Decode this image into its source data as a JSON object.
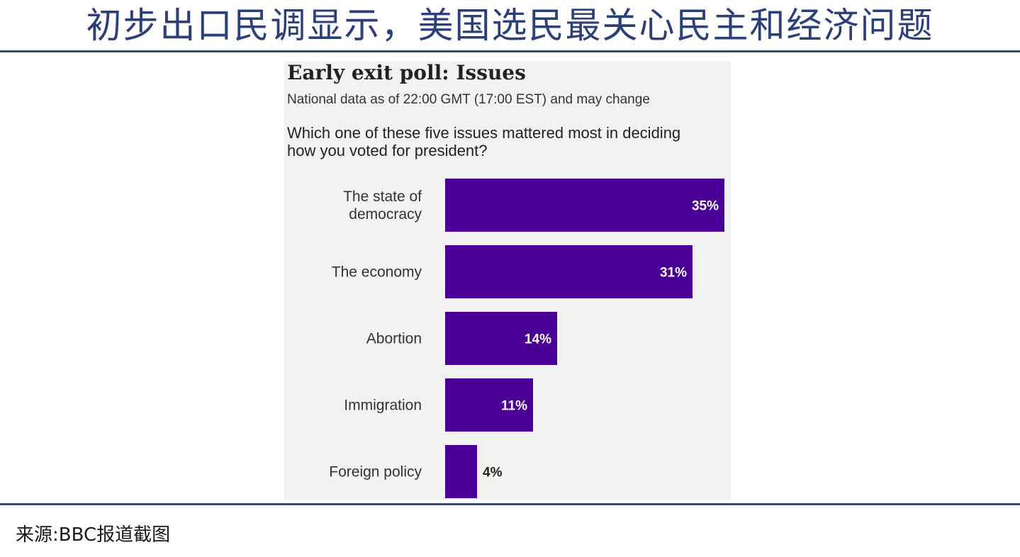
{
  "slide": {
    "title": "初步出口民调显示，美国选民最关心民主和经济问题",
    "source": "来源:BBC报道截图"
  },
  "colors": {
    "title": "#2b3f78",
    "rule": "#3a4a7a",
    "bar": "#4b0095",
    "card_background": "#f2f2f2"
  },
  "chart_data": {
    "type": "bar",
    "orientation": "horizontal",
    "title": "Early exit poll: Issues",
    "subtitle": "National data as of 22:00 GMT (17:00 EST) and may change",
    "question": "Which one of these five issues mattered most in deciding how you voted for president?",
    "categories": [
      [
        "The state of",
        "democracy"
      ],
      [
        "The economy"
      ],
      [
        "Abortion"
      ],
      [
        "Immigration"
      ],
      [
        "Foreign policy"
      ]
    ],
    "values": [
      35,
      31,
      14,
      11,
      4
    ],
    "value_labels": [
      "35%",
      "31%",
      "14%",
      "11%",
      "4%"
    ],
    "unit": "%",
    "xlim": [
      0,
      35
    ],
    "grid": false,
    "legend": "none"
  }
}
